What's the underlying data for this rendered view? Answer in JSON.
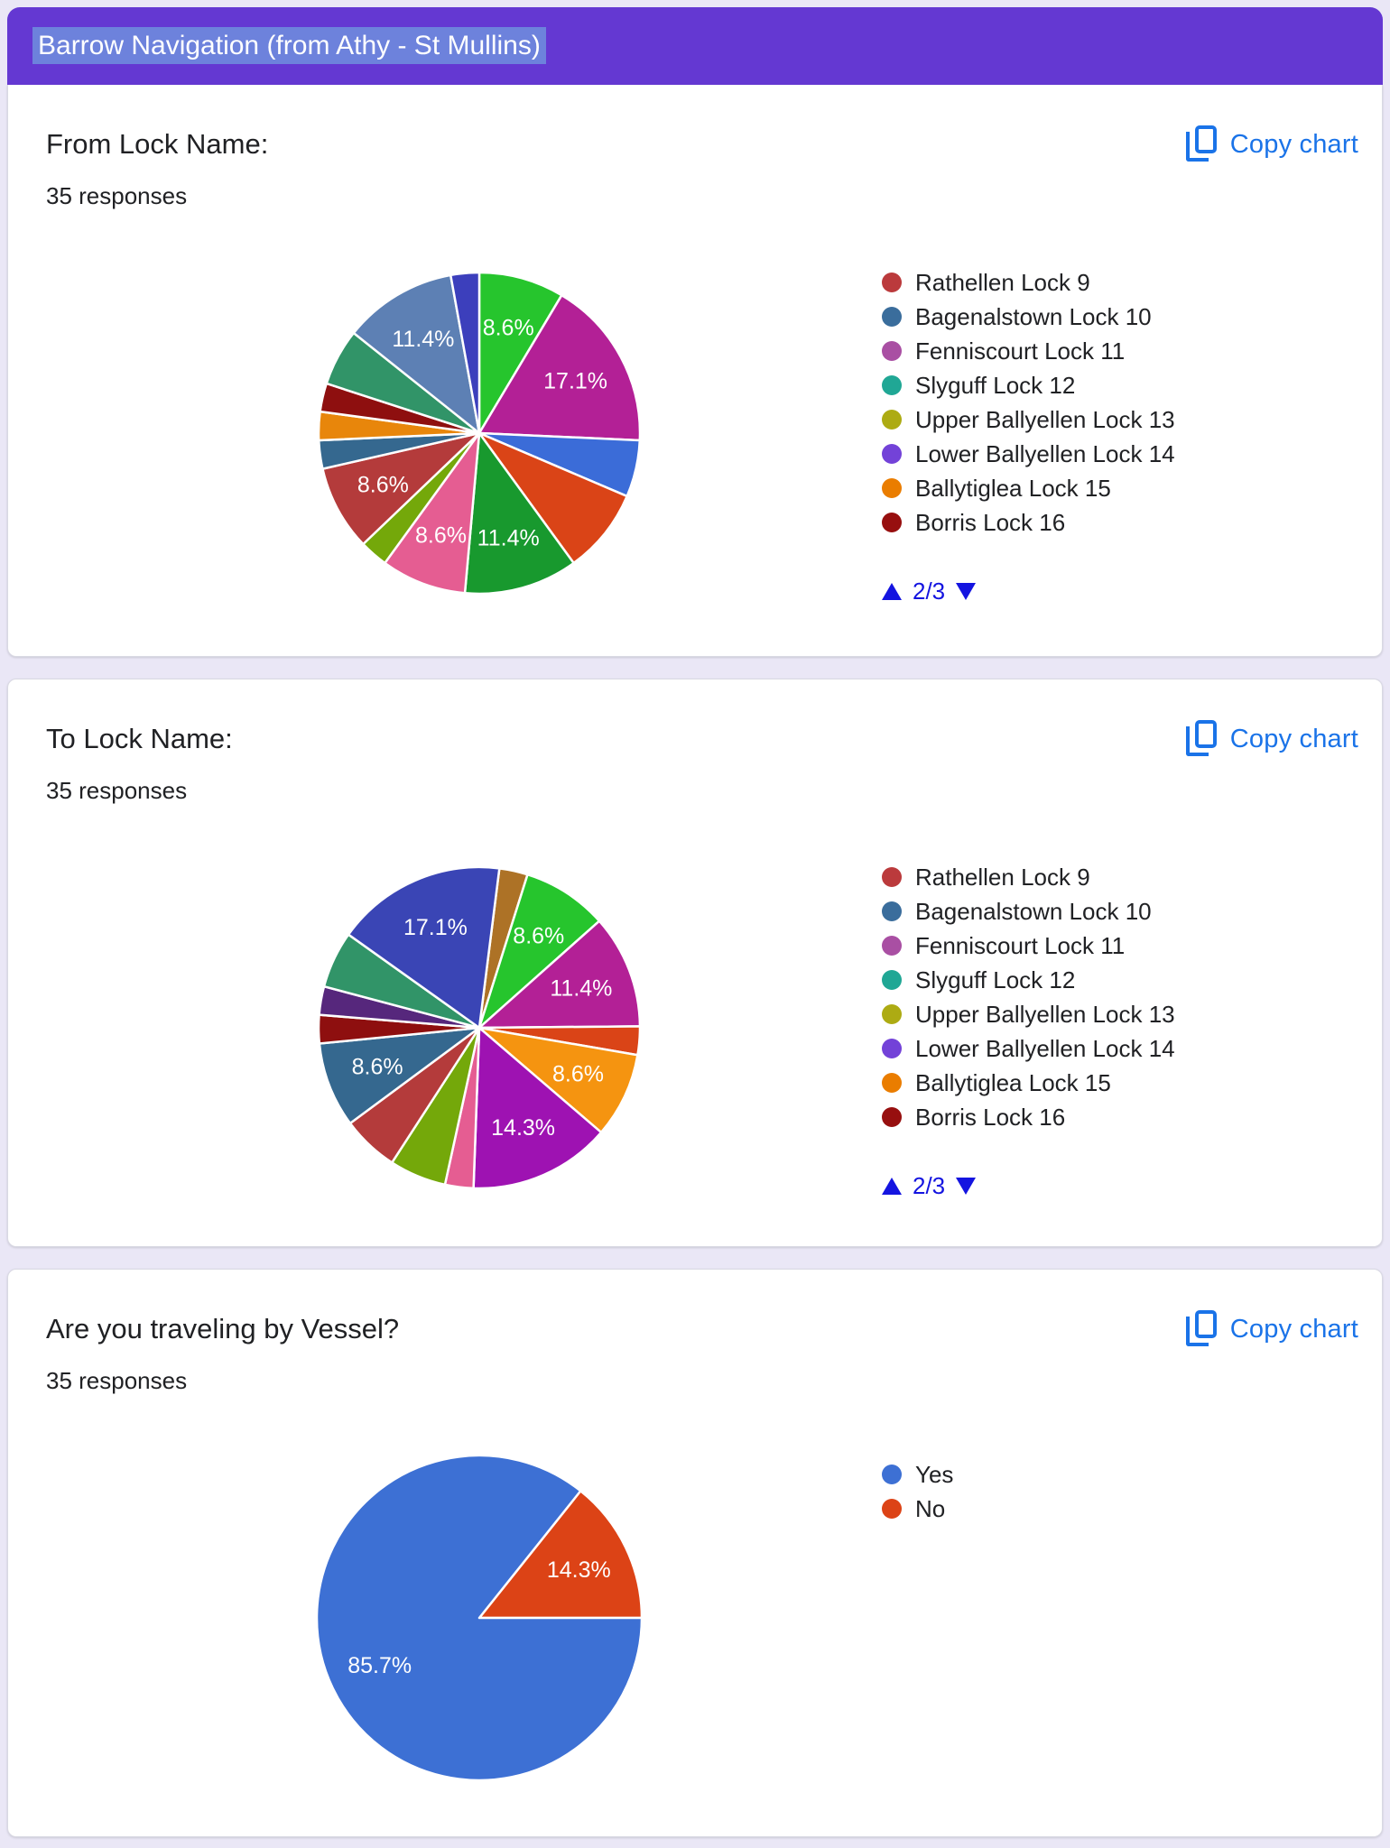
{
  "page": {
    "background": "#eae7f6",
    "card_background": "#ffffff"
  },
  "header": {
    "title": "Barrow Navigation (from Athy - St Mullins)",
    "background": "#6438d2",
    "selection_highlight": "#6d82dc",
    "text_color": "#ffffff"
  },
  "copy_chart": {
    "label": "Copy chart",
    "color": "#1a73e8"
  },
  "pagination": {
    "current": "2/3",
    "color": "#1414e0"
  },
  "cards": [
    {
      "title": "From Lock Name:",
      "responses_text": "35 responses",
      "has_pagination": true,
      "legend": [
        {
          "label": "Rathellen Lock 9",
          "color": "#bb3a3c"
        },
        {
          "label": "Bagenalstown Lock 10",
          "color": "#3a6d9c"
        },
        {
          "label": "Fenniscourt Lock 11",
          "color": "#a94fa3"
        },
        {
          "label": "Slyguff Lock 12",
          "color": "#20a795"
        },
        {
          "label": "Upper Ballyellen Lock 13",
          "color": "#adab13"
        },
        {
          "label": "Lower Ballyellen Lock 14",
          "color": "#7342d8"
        },
        {
          "label": "Ballytiglea Lock 15",
          "color": "#ea7d00"
        },
        {
          "label": "Borris Lock 16",
          "color": "#970f0f"
        }
      ]
    },
    {
      "title": "To Lock Name:",
      "responses_text": "35 responses",
      "has_pagination": true,
      "legend": [
        {
          "label": "Rathellen Lock 9",
          "color": "#bb3a3c"
        },
        {
          "label": "Bagenalstown Lock 10",
          "color": "#3a6d9c"
        },
        {
          "label": "Fenniscourt Lock 11",
          "color": "#a94fa3"
        },
        {
          "label": "Slyguff Lock 12",
          "color": "#20a795"
        },
        {
          "label": "Upper Ballyellen Lock 13",
          "color": "#adab13"
        },
        {
          "label": "Lower Ballyellen Lock 14",
          "color": "#7342d8"
        },
        {
          "label": "Ballytiglea Lock 15",
          "color": "#ea7d00"
        },
        {
          "label": "Borris Lock 16",
          "color": "#970f0f"
        }
      ]
    },
    {
      "title": "Are you traveling by Vessel?",
      "responses_text": "35 responses",
      "has_pagination": false,
      "legend": [
        {
          "label": "Yes",
          "color": "#3d70d4"
        },
        {
          "label": "No",
          "color": "#dc4316"
        }
      ]
    }
  ],
  "chart_data": [
    {
      "type": "pie",
      "title": "From Lock Name:",
      "total_responses": 35,
      "start_angle_deg": 0,
      "slices": [
        {
          "count": 3,
          "pct": 8.6,
          "color": "#26c52d",
          "label": "8.6%"
        },
        {
          "count": 6,
          "pct": 17.1,
          "color": "#b32096",
          "label": "17.1%"
        },
        {
          "count": 2,
          "pct": 5.7,
          "color": "#3b6cd8",
          "label": null
        },
        {
          "count": 3,
          "pct": 8.6,
          "color": "#da4417",
          "label": null
        },
        {
          "count": 4,
          "pct": 11.4,
          "color": "#18992e",
          "label": "11.4%"
        },
        {
          "count": 3,
          "pct": 8.6,
          "color": "#e55d92",
          "label": "8.6%"
        },
        {
          "count": 1,
          "pct": 2.9,
          "color": "#74a80a",
          "label": null
        },
        {
          "count": 3,
          "pct": 8.6,
          "color": "#b43b3b",
          "label": "8.6%"
        },
        {
          "count": 1,
          "pct": 2.9,
          "color": "#35688f",
          "label": null
        },
        {
          "count": 1,
          "pct": 2.9,
          "color": "#e8860b",
          "label": null
        },
        {
          "count": 1,
          "pct": 2.9,
          "color": "#8e0f0f",
          "label": null
        },
        {
          "count": 2,
          "pct": 5.7,
          "color": "#319468",
          "label": null
        },
        {
          "count": 4,
          "pct": 11.4,
          "color": "#5d80b4",
          "label": "11.4%"
        },
        {
          "count": 1,
          "pct": 2.9,
          "color": "#3c3fbc",
          "label": null
        }
      ]
    },
    {
      "type": "pie",
      "title": "To Lock Name:",
      "total_responses": 35,
      "start_angle_deg": 7.2,
      "slices": [
        {
          "count": 1,
          "pct": 2.9,
          "color": "#ad7226",
          "label": null
        },
        {
          "count": 3,
          "pct": 8.6,
          "color": "#26c52d",
          "label": "8.6%"
        },
        {
          "count": 4,
          "pct": 11.4,
          "color": "#b32096",
          "label": "11.4%"
        },
        {
          "count": 1,
          "pct": 2.9,
          "color": "#da4417",
          "label": null
        },
        {
          "count": 3,
          "pct": 8.6,
          "color": "#f59410",
          "label": "8.6%"
        },
        {
          "count": 5,
          "pct": 14.3,
          "color": "#9e12b2",
          "label": "14.3%"
        },
        {
          "count": 1,
          "pct": 2.9,
          "color": "#e55d92",
          "label": null
        },
        {
          "count": 2,
          "pct": 5.7,
          "color": "#74a80a",
          "label": null
        },
        {
          "count": 2,
          "pct": 5.7,
          "color": "#b43b3b",
          "label": null
        },
        {
          "count": 3,
          "pct": 8.6,
          "color": "#35688f",
          "label": "8.6%"
        },
        {
          "count": 1,
          "pct": 2.9,
          "color": "#8e0f0f",
          "label": null
        },
        {
          "count": 1,
          "pct": 2.9,
          "color": "#56277c",
          "label": null
        },
        {
          "count": 2,
          "pct": 5.7,
          "color": "#319468",
          "label": null
        },
        {
          "count": 6,
          "pct": 17.1,
          "color": "#3a45b5",
          "label": "17.1%"
        }
      ]
    },
    {
      "type": "pie",
      "title": "Are you traveling by Vessel?",
      "total_responses": 35,
      "start_angle_deg": 38.57,
      "slices": [
        {
          "count": 5,
          "pct": 14.3,
          "color": "#dc4316",
          "label": "14.3%",
          "name": "No"
        },
        {
          "count": 30,
          "pct": 85.7,
          "color": "#3d70d4",
          "label": "85.7%",
          "name": "Yes"
        }
      ]
    }
  ]
}
